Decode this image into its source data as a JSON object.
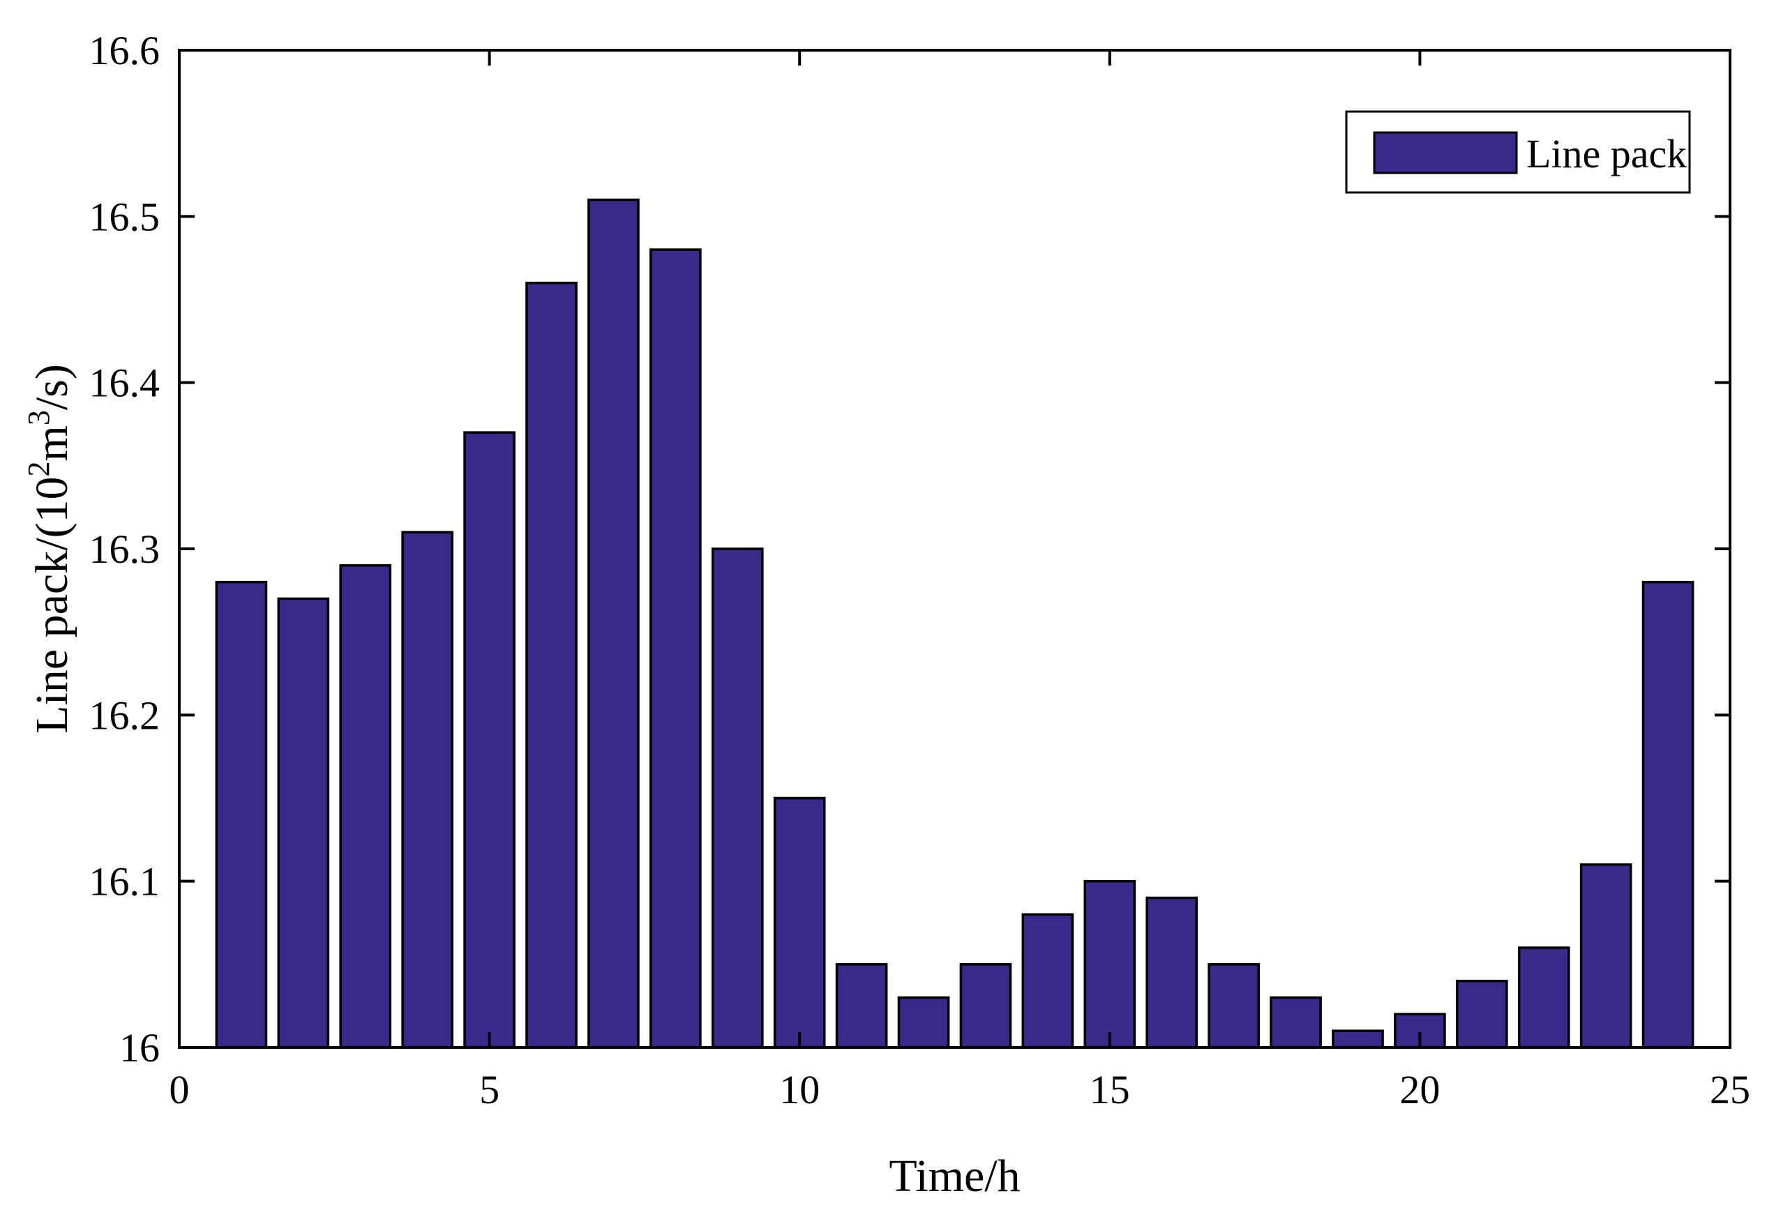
{
  "chart_data": {
    "type": "bar",
    "x": [
      1,
      2,
      3,
      4,
      5,
      6,
      7,
      8,
      9,
      10,
      11,
      12,
      13,
      14,
      15,
      16,
      17,
      18,
      19,
      20,
      21,
      22,
      23,
      24
    ],
    "series": [
      {
        "name": "Line pack",
        "color": "#372a8a",
        "values": [
          16.28,
          16.27,
          16.29,
          16.31,
          16.37,
          16.46,
          16.51,
          16.48,
          16.3,
          16.15,
          16.05,
          16.03,
          16.05,
          16.08,
          16.1,
          16.09,
          16.05,
          16.03,
          16.01,
          16.02,
          16.04,
          16.06,
          16.11,
          16.28
        ]
      }
    ],
    "xlabel": "Time/h",
    "ylabel": {
      "prefix": "Line pack/(10",
      "exp1": "2",
      "mid": "m",
      "exp2": "3",
      "suffix": "/s)"
    },
    "xlim": [
      0,
      25
    ],
    "ylim": [
      16,
      16.6
    ],
    "xticks": [
      "0",
      "5",
      "10",
      "15",
      "20",
      "25"
    ],
    "yticks": [
      "16",
      "16.1",
      "16.2",
      "16.3",
      "16.4",
      "16.5",
      "16.6"
    ],
    "grid": false,
    "legend_position": "top-right",
    "bar_color": "#372a8a",
    "edge_color": "#000000"
  }
}
